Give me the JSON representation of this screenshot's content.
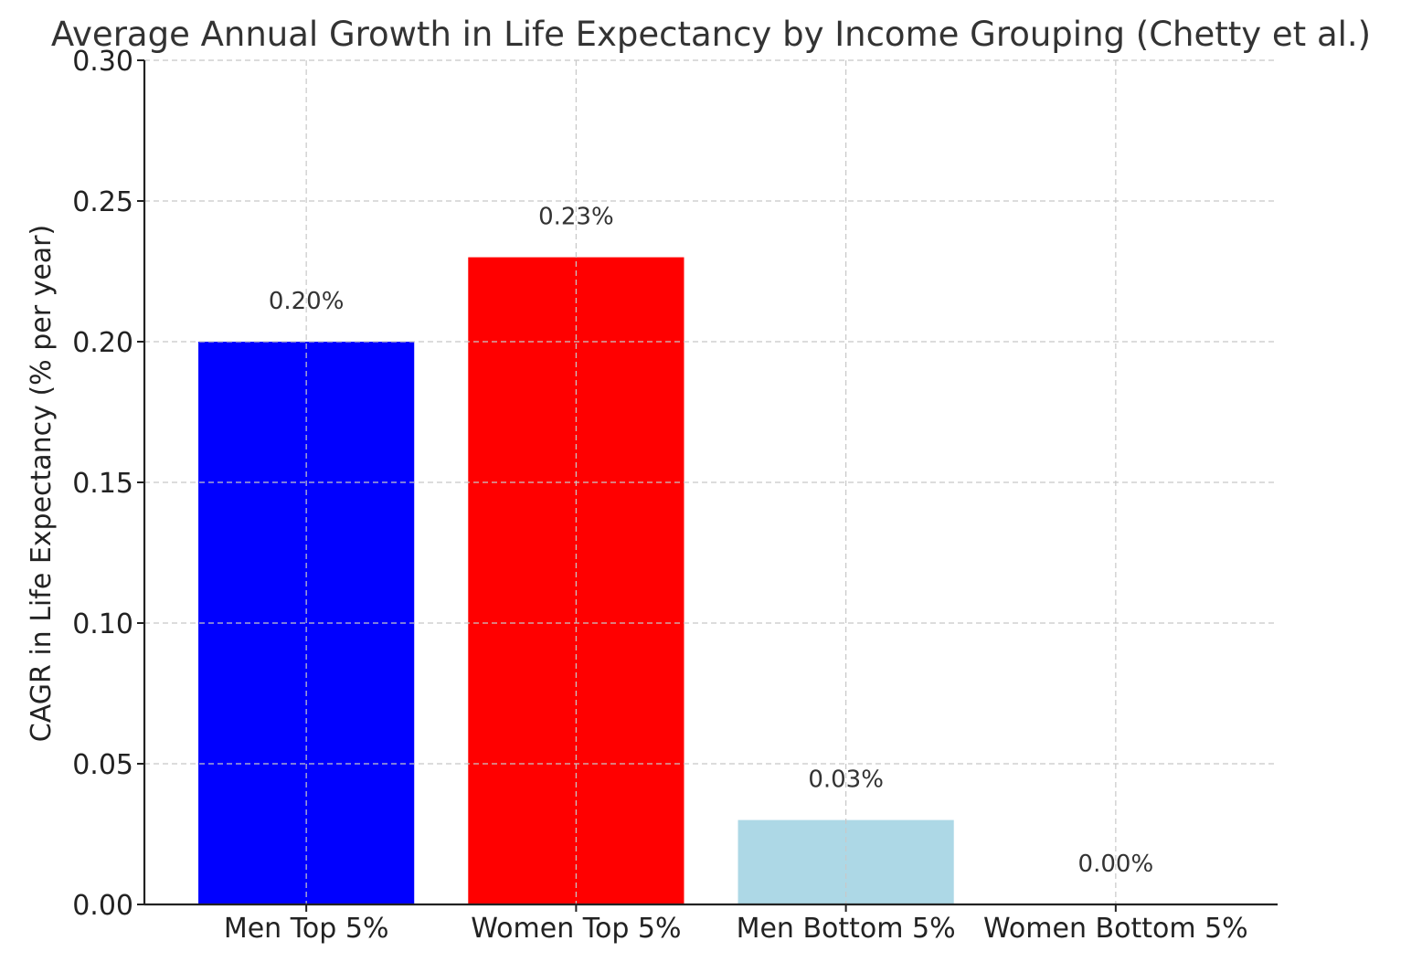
{
  "chart_data": {
    "type": "bar",
    "title": "Average Annual Growth in Life Expectancy by Income Grouping (Chetty et al.)",
    "xlabel": "",
    "ylabel": "CAGR in Life Expectancy (% per year)",
    "categories": [
      "Men Top 5%",
      "Women Top 5%",
      "Men Bottom 5%",
      "Women Bottom 5%"
    ],
    "values": [
      0.2,
      0.23,
      0.03,
      0.0
    ],
    "data_labels": [
      "0.20%",
      "0.23%",
      "0.03%",
      "0.00%"
    ],
    "colors": [
      "#0000ff",
      "#ff0000",
      "#add8e6",
      "#ffffff"
    ],
    "ylim": [
      0,
      0.3
    ],
    "yticks": [
      0.0,
      0.05,
      0.1,
      0.15,
      0.2,
      0.25,
      0.3
    ],
    "ytick_labels": [
      "0.00",
      "0.05",
      "0.10",
      "0.15",
      "0.20",
      "0.25",
      "0.30"
    ],
    "grid": true,
    "legend": "none"
  }
}
